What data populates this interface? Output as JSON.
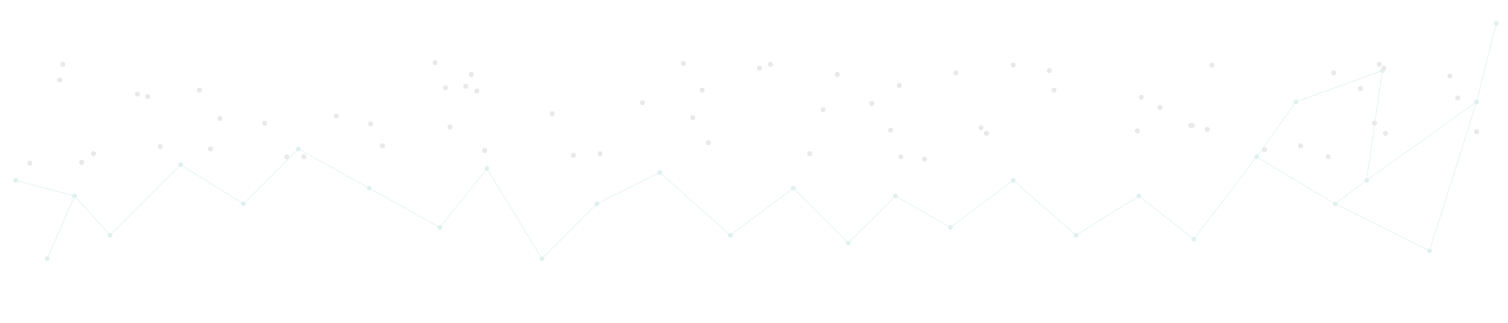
{
  "colors": {
    "background": "#ffffff",
    "pin_top": "#f5f5f5",
    "pin_bottom": "#dcdcdc",
    "pin_dot": "#e9e9e9",
    "network_line": "#e6f4f2",
    "network_dot": "#dff1ee"
  },
  "icons": [
    "decorative-pin-pattern",
    "network-mesh-background"
  ]
}
